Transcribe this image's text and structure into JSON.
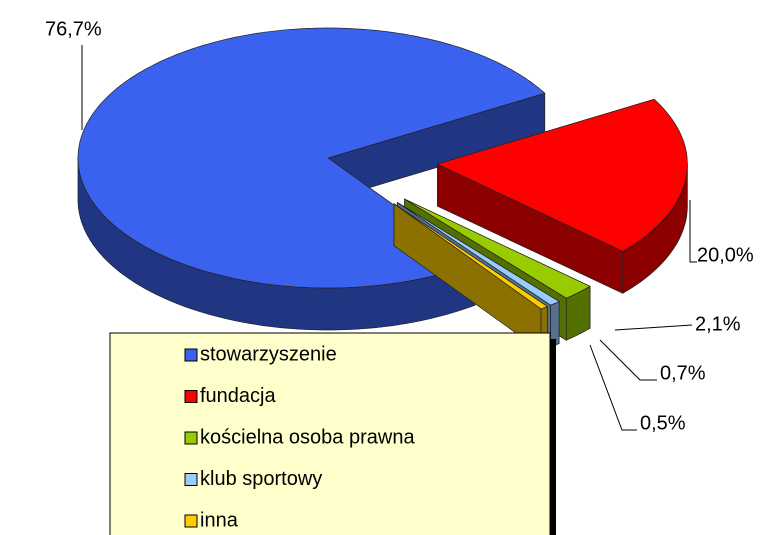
{
  "chart_data": {
    "type": "pie3d",
    "categories": [
      "stowarzyszenie",
      "fundacja",
      "kościelna osoba prawna",
      "klub sportowy",
      "inna"
    ],
    "values": [
      76.7,
      20.0,
      2.1,
      0.7,
      0.5
    ],
    "value_labels": [
      "76,7%",
      "20,0%",
      "2,1%",
      "0,7%",
      "0,5%"
    ],
    "colors": [
      "#3a62ee",
      "#ff0000",
      "#99cc00",
      "#99ccff",
      "#ffcc00"
    ],
    "legend": "bottom"
  }
}
